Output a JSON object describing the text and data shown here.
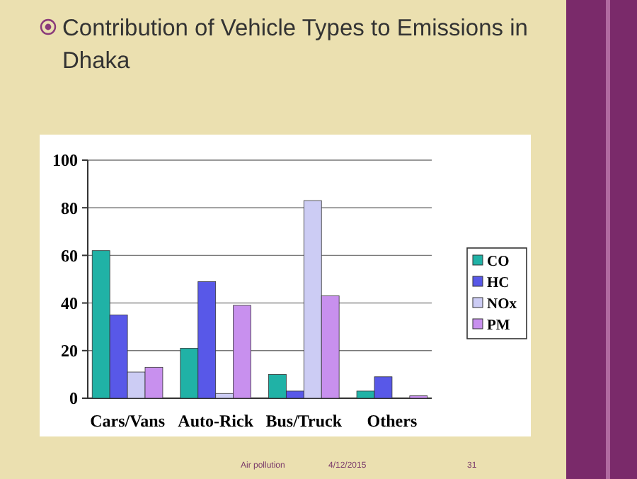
{
  "chart_data": {
    "type": "bar",
    "title": "Contribution of Vehicle Types to Emissions in Dhaka",
    "categories": [
      "Cars/Vans",
      "Auto-Rick",
      "Bus/Truck",
      "Others"
    ],
    "series": [
      {
        "name": "CO",
        "color": "#20b2a6",
        "values": [
          62,
          21,
          10,
          3
        ]
      },
      {
        "name": "HC",
        "color": "#5858e8",
        "values": [
          35,
          49,
          3,
          9
        ]
      },
      {
        "name": "NOx",
        "color": "#ccccf4",
        "values": [
          11,
          2,
          83,
          0
        ]
      },
      {
        "name": "PM",
        "color": "#c890ee",
        "values": [
          13,
          39,
          43,
          1
        ]
      }
    ],
    "ylim": [
      0,
      100
    ],
    "yticks": [
      0,
      20,
      40,
      60,
      80,
      100
    ],
    "grid": "y",
    "legend": "right",
    "annotations": [
      "Air pollution",
      "4/12/2015",
      "31"
    ]
  }
}
